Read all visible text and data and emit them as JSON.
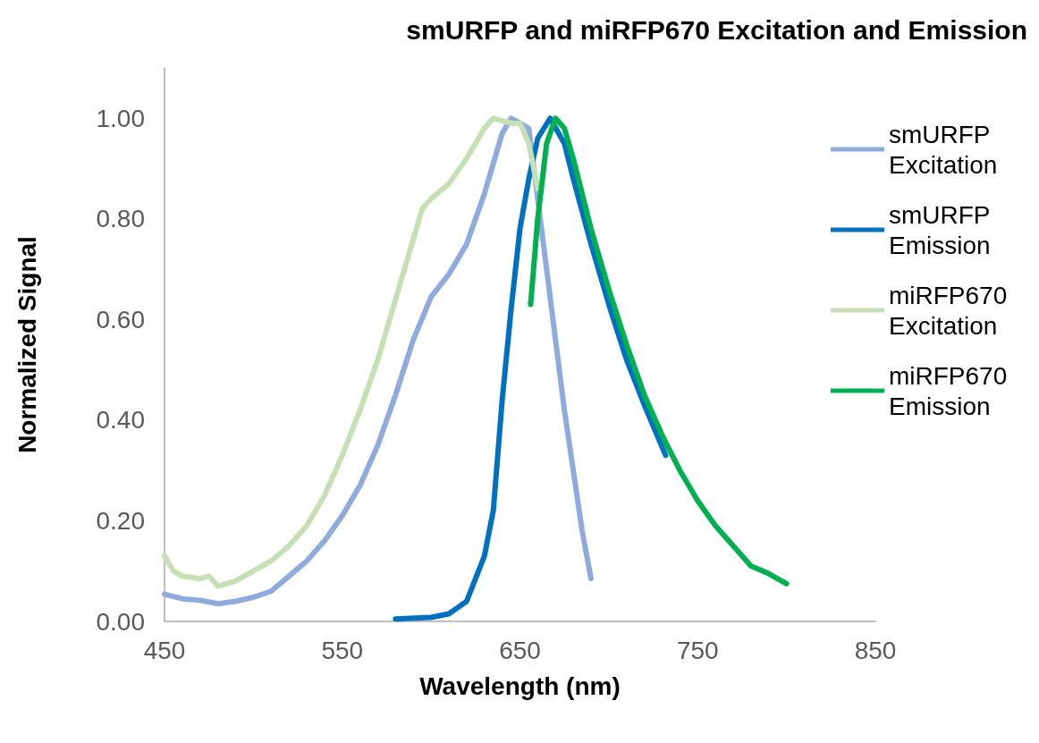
{
  "chart_data": {
    "type": "line",
    "title": "smURFP and miRFP670 Excitation and Emission",
    "xlabel": "Wavelength (nm)",
    "ylabel": "Normalized Signal",
    "xlim": [
      450,
      850
    ],
    "xticks": [
      450,
      550,
      650,
      750,
      850
    ],
    "ylim": [
      0,
      1.1
    ],
    "yticks": [
      {
        "value": 0,
        "label": "0.00"
      },
      {
        "value": 0.2,
        "label": "0.20"
      },
      {
        "value": 0.4,
        "label": "0.40"
      },
      {
        "value": 0.6,
        "label": "0.60"
      },
      {
        "value": 0.8,
        "label": "0.80"
      },
      {
        "value": 1,
        "label": "1.00"
      }
    ],
    "grid": false,
    "legend": "right",
    "marker": "none",
    "line_style": "solid",
    "series": [
      {
        "name": "smURFP Excitation",
        "color": "#8faadc",
        "x": [
          450,
          460,
          470,
          480,
          490,
          500,
          510,
          520,
          530,
          540,
          550,
          560,
          570,
          580,
          590,
          600,
          610,
          620,
          630,
          640,
          645,
          650,
          655,
          660,
          665,
          670,
          675,
          680,
          685,
          690
        ],
        "values": [
          0.054,
          0.045,
          0.042,
          0.035,
          0.04,
          0.048,
          0.06,
          0.09,
          0.12,
          0.16,
          0.21,
          0.27,
          0.35,
          0.45,
          0.56,
          0.645,
          0.69,
          0.75,
          0.85,
          0.97,
          1.0,
          0.99,
          0.98,
          0.84,
          0.7,
          0.56,
          0.42,
          0.3,
          0.18,
          0.085
        ]
      },
      {
        "name": "smURFP Emission",
        "color": "#0070c0",
        "x": [
          580,
          600,
          610,
          620,
          630,
          635,
          640,
          645,
          650,
          655,
          660,
          667,
          675,
          680,
          690,
          700,
          710,
          720,
          732
        ],
        "values": [
          0.005,
          0.008,
          0.015,
          0.04,
          0.13,
          0.22,
          0.44,
          0.62,
          0.78,
          0.88,
          0.96,
          1.0,
          0.95,
          0.88,
          0.75,
          0.63,
          0.52,
          0.43,
          0.33
        ]
      },
      {
        "name": "miRFP670 Excitation",
        "color": "#c5e0b4",
        "x": [
          450,
          455,
          460,
          470,
          475,
          480,
          490,
          500,
          510,
          520,
          530,
          540,
          550,
          560,
          570,
          580,
          590,
          595,
          600,
          610,
          620,
          630,
          635,
          645,
          650,
          655,
          660
        ],
        "values": [
          0.13,
          0.1,
          0.09,
          0.085,
          0.09,
          0.07,
          0.08,
          0.1,
          0.12,
          0.15,
          0.19,
          0.25,
          0.33,
          0.42,
          0.52,
          0.64,
          0.76,
          0.82,
          0.84,
          0.87,
          0.92,
          0.98,
          1.0,
          0.99,
          0.99,
          0.95,
          0.86
        ]
      },
      {
        "name": "miRFP670 Emission",
        "color": "#00b050",
        "x": [
          656,
          660,
          665,
          670,
          675,
          680,
          690,
          700,
          710,
          720,
          730,
          740,
          750,
          760,
          770,
          780,
          790,
          800
        ],
        "values": [
          0.63,
          0.8,
          0.95,
          1.0,
          0.98,
          0.92,
          0.78,
          0.66,
          0.55,
          0.45,
          0.37,
          0.3,
          0.24,
          0.19,
          0.15,
          0.11,
          0.095,
          0.075
        ]
      }
    ]
  }
}
